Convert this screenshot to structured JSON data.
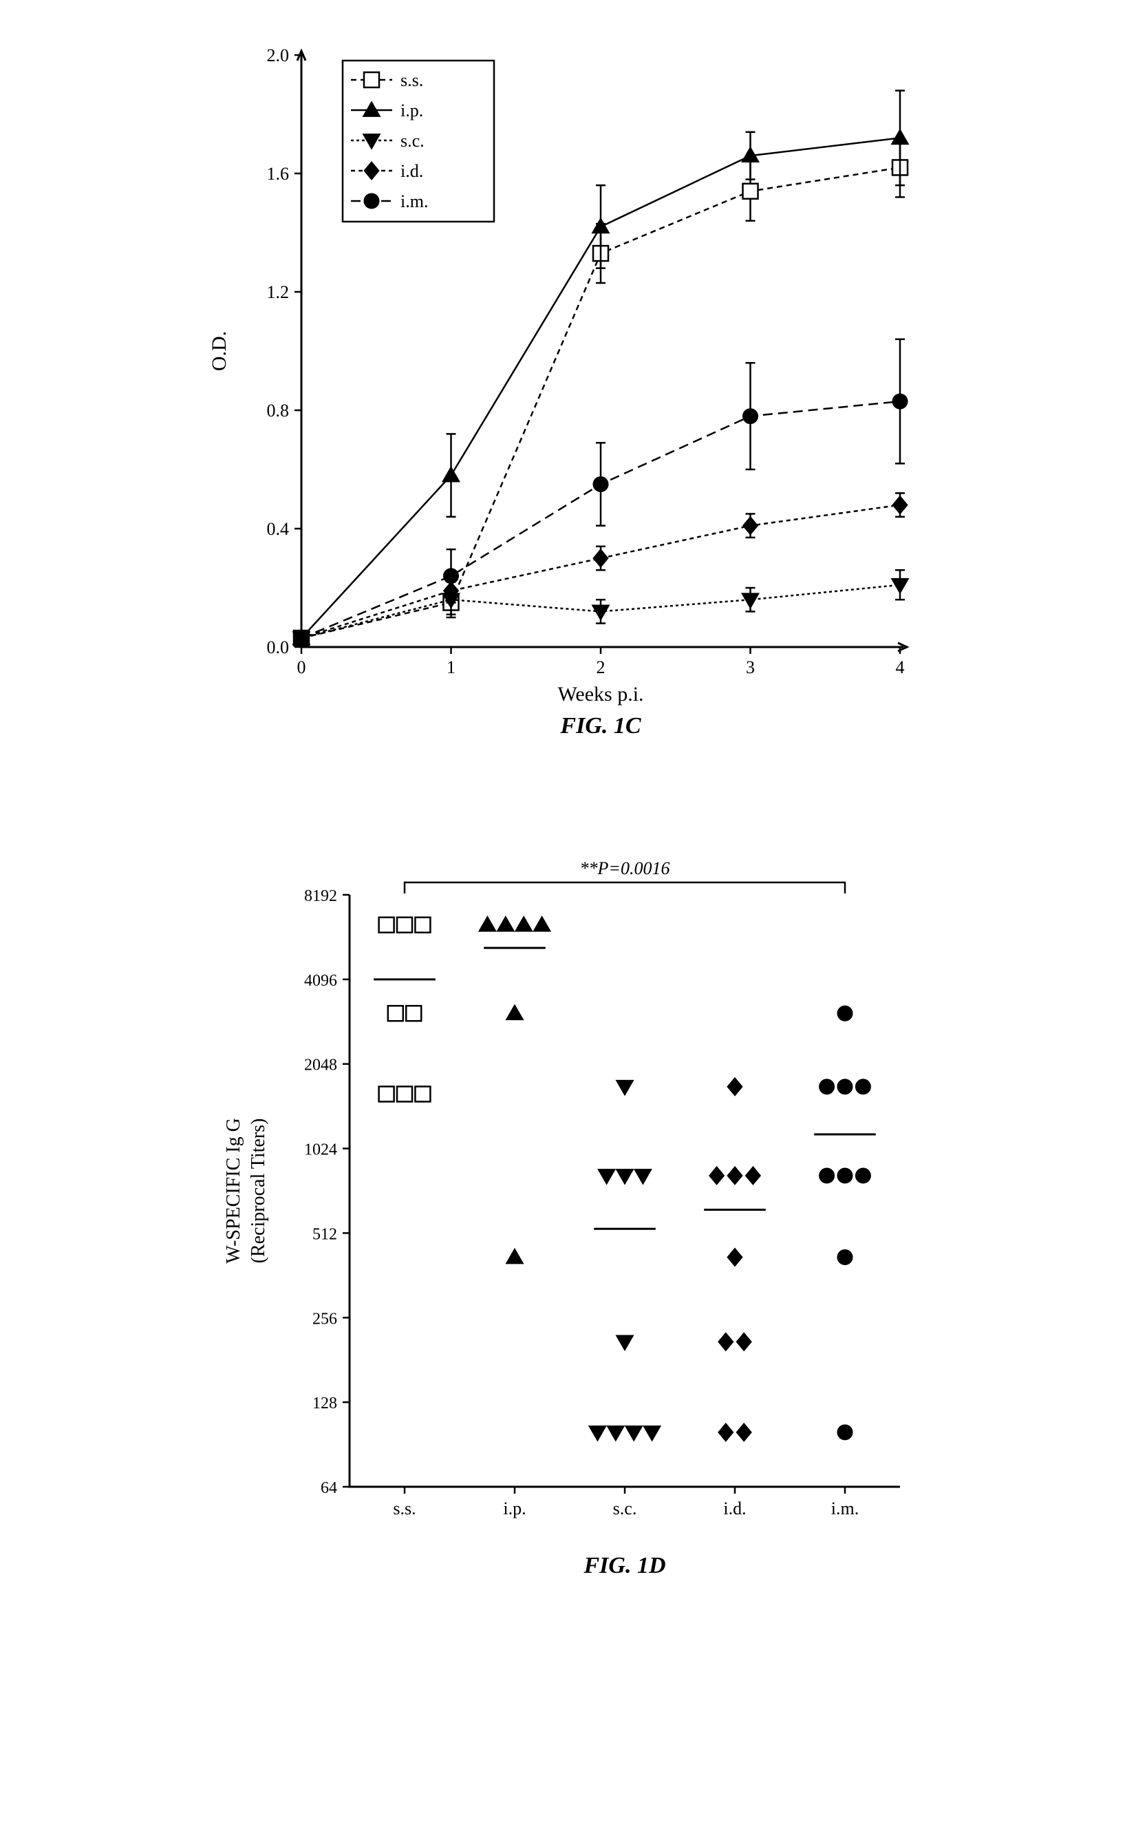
{
  "figure1C": {
    "type": "line",
    "title": "FIG. 1C",
    "xlabel": "Weeks p.i.",
    "ylabel": "O.D.",
    "title_fontsize": 34,
    "label_fontsize": 30,
    "tick_fontsize": 26,
    "legend_fontsize": 26,
    "xlim": [
      0,
      4
    ],
    "ylim": [
      0,
      2.0
    ],
    "xticks": [
      0,
      1,
      2,
      3,
      4
    ],
    "yticks": [
      0.0,
      0.4,
      0.8,
      1.2,
      1.6,
      2.0
    ],
    "background_color": "#ffffff",
    "line_color": "#000000",
    "marker_size": 11,
    "error_cap": 7,
    "legend": {
      "position": "top-left",
      "items": [
        "s.s.",
        "i.p.",
        "s.c.",
        "i.d.",
        "i.m."
      ]
    },
    "series": [
      {
        "name": "s.s.",
        "marker": "open-square",
        "dash": "8,6",
        "x": [
          0,
          1,
          2,
          3,
          4
        ],
        "y": [
          0.03,
          0.15,
          1.33,
          1.54,
          1.62
        ],
        "err": [
          0,
          0.04,
          0.1,
          0.1,
          0.1
        ]
      },
      {
        "name": "i.p.",
        "marker": "triangle-up",
        "dash": "none",
        "x": [
          0,
          1,
          2,
          3,
          4
        ],
        "y": [
          0.03,
          0.58,
          1.42,
          1.66,
          1.72
        ],
        "err": [
          0,
          0.14,
          0.14,
          0.08,
          0.16
        ]
      },
      {
        "name": "s.c.",
        "marker": "triangle-down",
        "dash": "4,4",
        "x": [
          0,
          1,
          2,
          3,
          4
        ],
        "y": [
          0.03,
          0.16,
          0.12,
          0.16,
          0.21
        ],
        "err": [
          0,
          0.06,
          0.04,
          0.04,
          0.05
        ]
      },
      {
        "name": "i.d.",
        "marker": "diamond",
        "dash": "6,5",
        "x": [
          0,
          1,
          2,
          3,
          4
        ],
        "y": [
          0.03,
          0.19,
          0.3,
          0.41,
          0.48
        ],
        "err": [
          0,
          0.04,
          0.04,
          0.04,
          0.04
        ]
      },
      {
        "name": "i.m.",
        "marker": "circle",
        "dash": "14,8",
        "x": [
          0,
          1,
          2,
          3,
          4
        ],
        "y": [
          0.03,
          0.24,
          0.55,
          0.78,
          0.83
        ],
        "err": [
          0,
          0.09,
          0.14,
          0.18,
          0.21
        ]
      }
    ]
  },
  "figure1D": {
    "type": "scatter",
    "title": "FIG. 1D",
    "ylabel_main": "W-SPECIFIC Ig G",
    "ylabel_sub": "(Reciprocal Titers)",
    "title_fontsize": 34,
    "label_fontsize": 28,
    "tick_fontsize": 24,
    "yscale": "log2",
    "ylim": [
      64,
      8192
    ],
    "yticks": [
      64,
      128,
      256,
      512,
      1024,
      2048,
      4096,
      8192
    ],
    "categories": [
      "s.s.",
      "i.p.",
      "s.c.",
      "i.d.",
      "i.m."
    ],
    "significance": {
      "label": "**P=0.0016",
      "from": 0,
      "to": 4
    },
    "marker_size": 11,
    "groups": [
      {
        "name": "s.s.",
        "marker": "open-square",
        "median": 4096,
        "points": [
          6400,
          6400,
          6400,
          3100,
          3100,
          1600,
          1600,
          1600
        ]
      },
      {
        "name": "i.p.",
        "marker": "triangle-up",
        "median": 5300,
        "points": [
          6400,
          6400,
          6400,
          6400,
          3100,
          420
        ]
      },
      {
        "name": "s.c.",
        "marker": "triangle-down",
        "median": 530,
        "points": [
          1700,
          820,
          820,
          820,
          210,
          100,
          100,
          100,
          100
        ]
      },
      {
        "name": "i.d.",
        "marker": "diamond",
        "median": 620,
        "points": [
          1700,
          820,
          820,
          820,
          420,
          210,
          210,
          100,
          100
        ]
      },
      {
        "name": "i.m.",
        "marker": "circle",
        "median": 1150,
        "points": [
          3100,
          1700,
          1700,
          1700,
          820,
          820,
          820,
          420,
          100
        ]
      }
    ]
  }
}
